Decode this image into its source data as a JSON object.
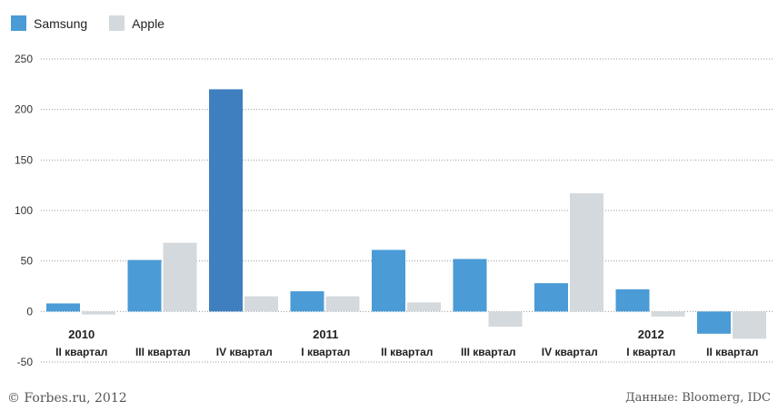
{
  "chart_data": {
    "type": "bar",
    "categories": [
      "II квартал",
      "III квартал",
      "IV квартал",
      "I квартал",
      "II квартал",
      "III квартал",
      "IV квартал",
      "I квартал",
      "II квартал"
    ],
    "year_labels": [
      {
        "index": 0,
        "label": "2010"
      },
      {
        "index": 3,
        "label": "2011"
      },
      {
        "index": 7,
        "label": "2012"
      }
    ],
    "series": [
      {
        "name": "Samsung",
        "color": "#4a9bd6",
        "values": [
          8,
          51,
          220,
          20,
          61,
          52,
          28,
          22,
          -22
        ]
      },
      {
        "name": "Apple",
        "color": "#d4d9dd",
        "values": [
          -3,
          68,
          15,
          15,
          9,
          -15,
          117,
          -5,
          -27
        ]
      }
    ],
    "highlight_color": "#3f7fbf",
    "ylim": [
      -50,
      250
    ],
    "yticks": [
      250,
      200,
      150,
      100,
      50,
      0,
      -50
    ],
    "grid": true,
    "legend": "top-left"
  },
  "footer": {
    "copyright": "© Forbes.ru, 2012",
    "source": "Данные: Bloomerg, IDC"
  }
}
